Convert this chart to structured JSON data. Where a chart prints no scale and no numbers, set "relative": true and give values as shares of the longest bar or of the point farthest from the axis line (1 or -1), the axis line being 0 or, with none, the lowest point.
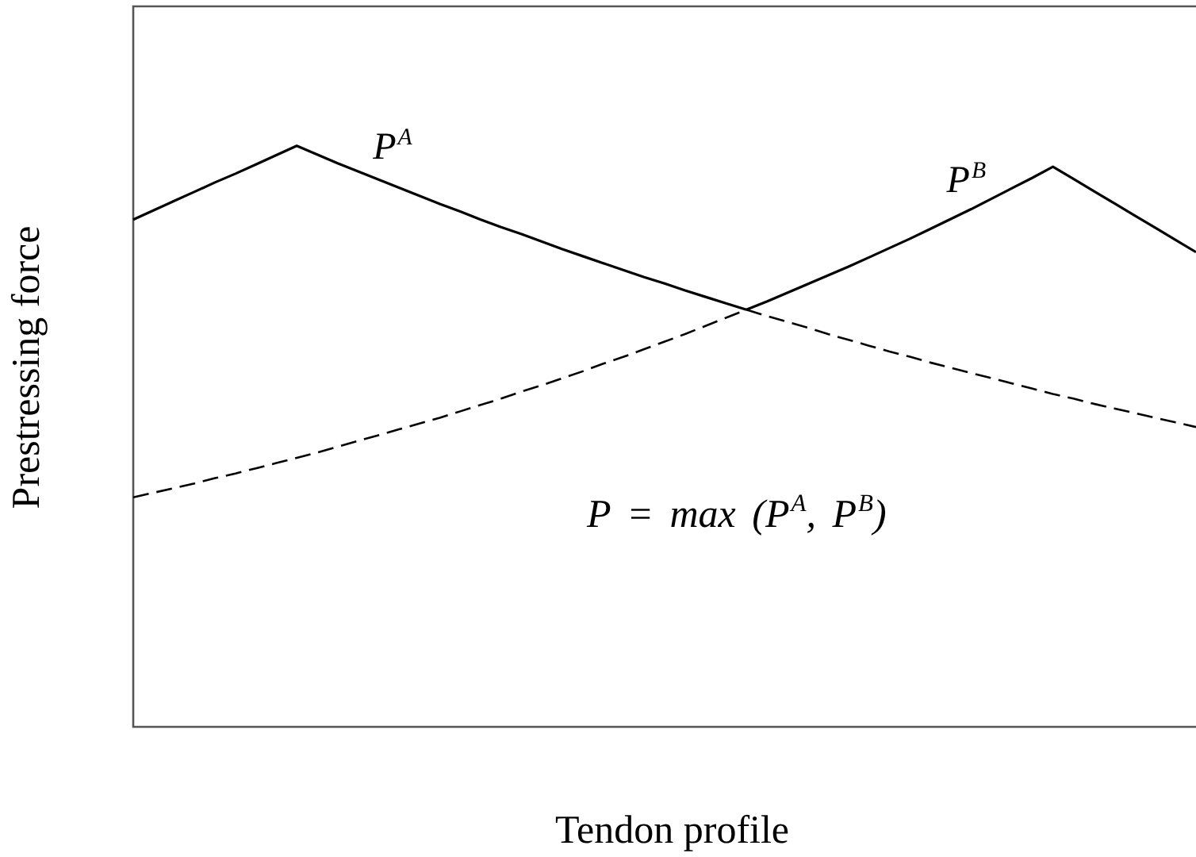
{
  "chart_data": {
    "type": "line",
    "xlabel": "Tendon profile",
    "ylabel": "Prestressing force",
    "relative": true,
    "marker": "none",
    "categories": [
      null,
      null,
      null,
      null,
      null,
      null,
      null,
      null,
      null,
      null,
      null,
      null,
      null,
      null,
      null,
      null,
      null,
      null,
      null,
      null,
      null,
      null,
      null,
      null,
      null,
      null,
      null,
      null,
      null,
      null,
      null,
      null,
      null,
      null,
      null,
      null,
      null,
      null,
      null,
      null,
      null,
      null,
      null,
      null,
      null,
      null,
      null,
      null,
      null,
      null,
      null,
      null,
      null
    ],
    "series": [
      {
        "name": "P$^{A}$",
        "color": "#000000",
        "line_style": "solid",
        "values": [
          0.873,
          0.889,
          0.905,
          0.921,
          0.937,
          0.952,
          0.968,
          0.984,
          1.0,
          0.985,
          0.97,
          0.956,
          0.942,
          0.928,
          0.914,
          0.9,
          0.887,
          0.873,
          0.86,
          0.848,
          0.835,
          0.822,
          0.81,
          0.798,
          0.786,
          0.774,
          0.763,
          0.751,
          0.74,
          0.729,
          0.718,
          null,
          null,
          null,
          null,
          null,
          null,
          null,
          null,
          null,
          null,
          null,
          null,
          null,
          null,
          null,
          null,
          null,
          null,
          null,
          null,
          null,
          null
        ]
      },
      {
        "color": "#000000",
        "line_style": "dashed",
        "values": [
          null,
          null,
          null,
          null,
          null,
          null,
          null,
          null,
          null,
          null,
          null,
          null,
          null,
          null,
          null,
          null,
          null,
          null,
          null,
          null,
          null,
          null,
          null,
          null,
          null,
          null,
          null,
          null,
          null,
          null,
          0.718,
          0.707,
          0.697,
          0.687,
          0.676,
          0.666,
          0.656,
          0.646,
          0.637,
          0.627,
          0.618,
          0.609,
          0.6,
          0.591,
          0.582,
          0.573,
          0.565,
          0.556,
          0.548,
          0.54,
          0.532,
          0.524,
          0.516
        ]
      },
      {
        "color": "#000000",
        "line_style": "dashed",
        "values": [
          0.395,
          0.403,
          0.411,
          0.419,
          0.428,
          0.436,
          0.445,
          0.454,
          0.463,
          0.472,
          0.482,
          0.492,
          0.502,
          0.512,
          0.522,
          0.532,
          0.543,
          0.554,
          0.565,
          0.577,
          0.588,
          0.6,
          0.612,
          0.625,
          0.637,
          0.65,
          0.663,
          0.676,
          0.69,
          0.704,
          0.718,
          null,
          null,
          null,
          null,
          null,
          null,
          null,
          null,
          null,
          null,
          null,
          null,
          null,
          null,
          null,
          null,
          null,
          null,
          null,
          null,
          null,
          null
        ]
      },
      {
        "name": "P$^{B}$",
        "color": "#000000",
        "line_style": "solid",
        "values": [
          null,
          null,
          null,
          null,
          null,
          null,
          null,
          null,
          null,
          null,
          null,
          null,
          null,
          null,
          null,
          null,
          null,
          null,
          null,
          null,
          null,
          null,
          null,
          null,
          null,
          null,
          null,
          null,
          null,
          null,
          0.718,
          0.732,
          0.747,
          0.762,
          0.777,
          0.792,
          0.808,
          0.824,
          0.84,
          0.857,
          0.874,
          0.891,
          0.909,
          0.927,
          0.945,
          0.964,
          0.943,
          0.922,
          0.901,
          0.88,
          0.859,
          0.838,
          0.817
        ]
      }
    ],
    "annotations": [
      "P = max (P$^{A}$, P$^{B}$)"
    ]
  }
}
